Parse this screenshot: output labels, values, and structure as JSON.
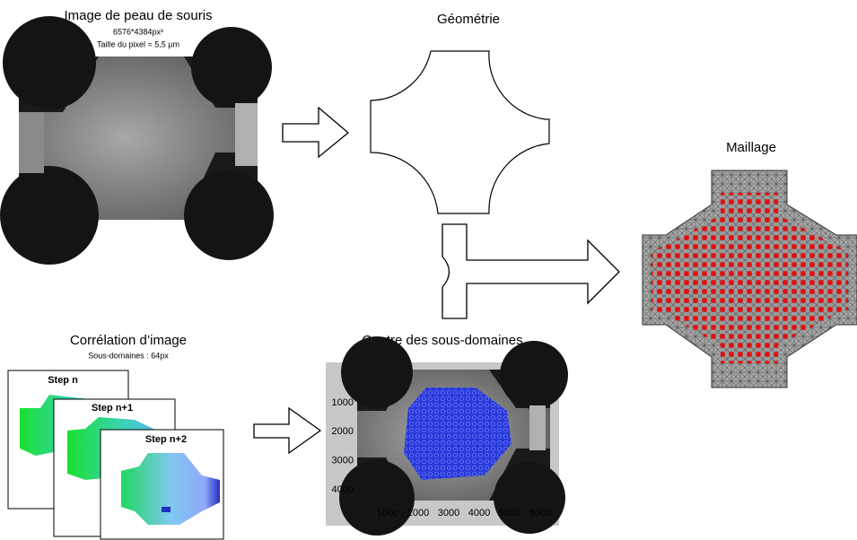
{
  "image": {
    "title": "Image de peau de souris",
    "size": "6576*4384px²",
    "pixel": "Taille du pixel = 5,5 µm"
  },
  "geometry": {
    "title": "Géométrie"
  },
  "mesh": {
    "title": "Maillage"
  },
  "correlation": {
    "title": "Corrélation d’image",
    "subtitle": "Sous-domaines : 64px",
    "steps": [
      "Step n",
      "Step n+1",
      "Step n+2"
    ]
  },
  "centres": {
    "title": "Centre des sous-domaines",
    "yticks": [
      "1000",
      "2000",
      "3000",
      "4000"
    ],
    "xticks": [
      "1000",
      "2000",
      "3000",
      "4000",
      "5000",
      "6000"
    ]
  }
}
